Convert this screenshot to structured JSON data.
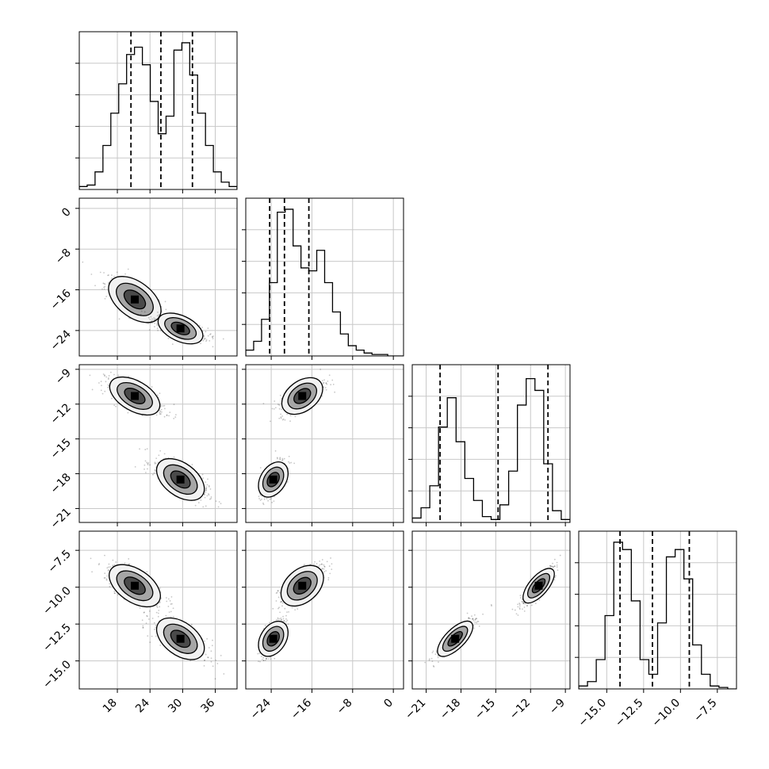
{
  "chart_data": {
    "type": "corner",
    "title": "",
    "parameters": [
      "",
      "",
      "",
      ""
    ],
    "ranges": [
      [
        11,
        40
      ],
      [
        -29,
        2
      ],
      [
        -22.2,
        -8.6
      ],
      [
        -16.9,
        -6.2
      ]
    ],
    "ticks": [
      [
        "18",
        "24",
        "30",
        "36"
      ],
      [
        "−24",
        "−16",
        "−8",
        "0"
      ],
      [
        "−21",
        "−18",
        "−15",
        "−12",
        "−9"
      ],
      [
        "−15.0",
        "−12.5",
        "−10.0",
        "−7.5"
      ]
    ],
    "tick_values": [
      [
        18,
        24,
        30,
        36
      ],
      [
        -24,
        -16,
        -8,
        0
      ],
      [
        -21,
        -18,
        -15,
        -12,
        -9
      ],
      [
        -15,
        -12.5,
        -10,
        -7.5
      ]
    ],
    "quantiles": [
      [
        20.5,
        26.0,
        31.8
      ],
      [
        -24.3,
        -21.4,
        -16.6
      ],
      [
        -19.8,
        -14.8,
        -10.5
      ],
      [
        -14.1,
        -11.9,
        -9.4
      ]
    ],
    "histograms": [
      {
        "edges_range": [
          11,
          40
        ],
        "counts": [
          0.02,
          0.03,
          0.12,
          0.3,
          0.52,
          0.72,
          0.92,
          0.97,
          0.85,
          0.6,
          0.38,
          0.5,
          0.95,
          1.0,
          0.78,
          0.52,
          0.3,
          0.12,
          0.05,
          0.02
        ]
      },
      {
        "edges_range": [
          -29,
          2
        ],
        "counts": [
          0.04,
          0.1,
          0.25,
          0.5,
          0.98,
          1.0,
          0.75,
          0.6,
          0.58,
          0.72,
          0.5,
          0.3,
          0.15,
          0.07,
          0.04,
          0.02,
          0.01,
          0.01,
          0.0,
          0.0
        ]
      },
      {
        "edges_range": [
          -22.2,
          -8.6
        ],
        "counts": [
          0.03,
          0.1,
          0.25,
          0.65,
          0.85,
          0.55,
          0.3,
          0.15,
          0.04,
          0.02,
          0.12,
          0.35,
          0.8,
          0.98,
          0.9,
          0.4,
          0.08,
          0.02
        ]
      },
      {
        "edges_range": [
          -16.9,
          -6.2
        ],
        "counts": [
          0.02,
          0.05,
          0.2,
          0.5,
          1.0,
          0.95,
          0.6,
          0.2,
          0.1,
          0.45,
          0.9,
          0.95,
          0.75,
          0.3,
          0.1,
          0.02,
          0.01,
          0.0
        ]
      }
    ],
    "modes": [
      {
        "mean": [
          21.2,
          -17.9,
          -11.3,
          -9.9
        ],
        "sd": [
          2.2,
          1.8,
          0.6,
          0.55
        ]
      },
      {
        "mean": [
          29.6,
          -23.6,
          -18.5,
          -13.5
        ],
        "sd": [
          2.0,
          1.0,
          0.7,
          0.55
        ]
      }
    ],
    "correlations": [
      [
        1,
        -0.7,
        -0.7,
        -0.7
      ],
      [
        -0.7,
        1,
        0.7,
        0.7
      ],
      [
        -0.7,
        0.7,
        1,
        0.9
      ],
      [
        -0.7,
        0.7,
        0.9,
        1
      ]
    ],
    "contour_levels": [
      0.5,
      1.0,
      1.5
    ],
    "grid": true,
    "legend": "none"
  }
}
